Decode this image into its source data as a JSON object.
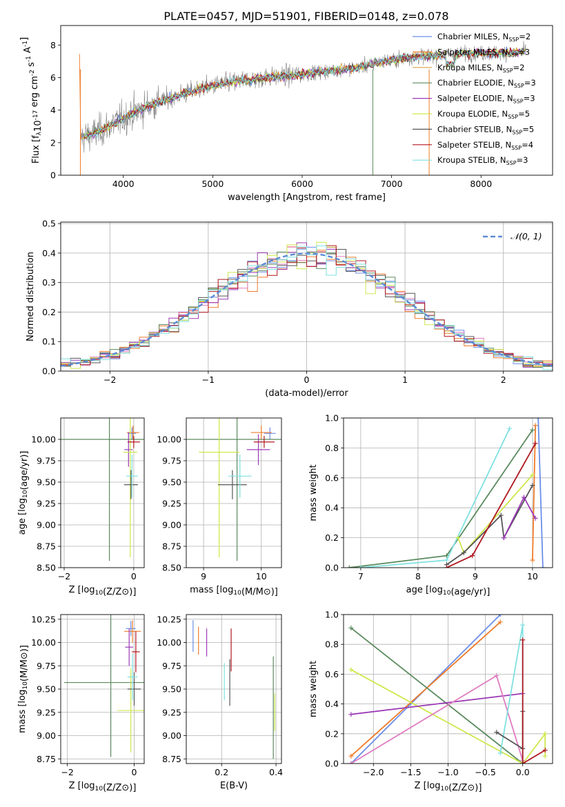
{
  "title": "PLATE=0457, MJD=51901, FIBERID=0148, z=0.078",
  "palette": [
    "#6b8ee8",
    "#ef7b2a",
    "#d9a24a",
    "#5a8a5e",
    "#9b3ab6",
    "#cde84a",
    "#555555",
    "#b0171f",
    "#7fe0e0"
  ],
  "gray": "#808080",
  "chart_data": [
    {
      "id": "spectrum",
      "type": "line",
      "xlabel": "wavelength [Angstrom, rest frame]",
      "ylabel": "Flux [f_λ10^-17 erg cm^-2 s^-1 A^-1]",
      "xlim": [
        3300,
        8800
      ],
      "ylim": [
        0,
        9.2
      ],
      "xticks": [
        4000,
        5000,
        6000,
        7000,
        8000
      ],
      "yticks": [
        0,
        2,
        4,
        6,
        8
      ],
      "grid": false,
      "legend_position": "right",
      "legend": [
        "Chabrier MILES, N_SSP=2",
        "Salpeter MILES, N_SSP=3",
        "Kroupa MILES, N_SSP=2",
        "Chabrier ELODIE, N_SSP=3",
        "Salpeter ELODIE, N_SSP=3",
        "Kroupa ELODIE, N_SSP=5",
        "Chabrier STELIB, N_SSP=5",
        "Salpeter STELIB, N_SSP=4",
        "Kroupa STELIB, N_SSP=3"
      ],
      "continuum": [
        [
          3520,
          2.3
        ],
        [
          3700,
          2.6
        ],
        [
          3900,
          3.2
        ],
        [
          4100,
          3.8
        ],
        [
          4300,
          4.3
        ],
        [
          4500,
          4.7
        ],
        [
          4800,
          5.2
        ],
        [
          5000,
          5.5
        ],
        [
          5300,
          5.8
        ],
        [
          5600,
          6.0
        ],
        [
          6000,
          6.2
        ],
        [
          6300,
          6.4
        ],
        [
          6600,
          6.6
        ],
        [
          7000,
          7.1
        ],
        [
          7300,
          7.3
        ],
        [
          7600,
          7.4
        ],
        [
          7900,
          7.5
        ],
        [
          8200,
          7.5
        ],
        [
          8500,
          7.6
        ]
      ]
    },
    {
      "id": "residuals",
      "type": "histogram",
      "xlabel": "(data-model)/error",
      "ylabel": "Normed distribution",
      "xlim": [
        -2.5,
        2.5
      ],
      "ylim": [
        0,
        0.505
      ],
      "xticks": [
        -2,
        -1,
        0,
        1,
        2
      ],
      "yticks": [
        0.0,
        0.1,
        0.2,
        0.3,
        0.4,
        0.5
      ],
      "grid": true,
      "legend": "N(0,1)",
      "legend_position": "top-right"
    },
    {
      "id": "age-vs-Z",
      "type": "errorbar",
      "xlabel": "Z [log10(Z/Z⊙)]",
      "ylabel": "age  [log10(age/yr)]",
      "xlim": [
        -2.1,
        0.3
      ],
      "ylim": [
        8.5,
        10.25
      ],
      "xticks": [
        -2,
        0
      ],
      "yticks": [
        8.5,
        8.75,
        9.0,
        9.25,
        9.5,
        9.75,
        10.0
      ],
      "grid": true,
      "points": [
        {
          "c": 0,
          "x": -0.05,
          "y": 10.07,
          "xe": 0.12,
          "ye": 0.07
        },
        {
          "c": 1,
          "x": -0.02,
          "y": 10.08,
          "xe": 0.18,
          "ye": 0.08
        },
        {
          "c": 2,
          "x": 0.0,
          "y": 10.0,
          "xe": 0.0,
          "ye": 0.0
        },
        {
          "c": 3,
          "x": -0.7,
          "y": 10.0,
          "xe": 1.4,
          "ye": 1.42
        },
        {
          "c": 4,
          "x": -0.15,
          "y": 9.88,
          "xe": 0.12,
          "ye": 0.2
        },
        {
          "c": 5,
          "x": -0.1,
          "y": 9.85,
          "xe": 0.2,
          "ye": 1.23
        },
        {
          "c": 6,
          "x": -0.08,
          "y": 9.47,
          "xe": 0.2,
          "ye": 0.17
        },
        {
          "c": 7,
          "x": 0.0,
          "y": 9.97,
          "xe": 0.18,
          "ye": 0.07
        },
        {
          "c": 8,
          "x": -0.05,
          "y": 9.57,
          "xe": 0.17,
          "ye": 0.25
        }
      ]
    },
    {
      "id": "age-vs-mass",
      "type": "errorbar",
      "xlabel": "mass [log10(M/M⊙)]",
      "ylabel": "",
      "xlim": [
        8.7,
        10.35
      ],
      "ylim": [
        8.5,
        10.25
      ],
      "xticks": [
        9,
        10
      ],
      "yticks": [
        8.5,
        8.75,
        9.0,
        9.25,
        9.5,
        9.75,
        10.0
      ],
      "grid": true,
      "points": [
        {
          "c": 0,
          "x": 10.15,
          "y": 10.07,
          "xe": 0.1,
          "ye": 0.07
        },
        {
          "c": 1,
          "x": 10.0,
          "y": 10.08,
          "xe": 0.18,
          "ye": 0.08
        },
        {
          "c": 3,
          "x": 9.58,
          "y": 10.0,
          "xe": 1.4,
          "ye": 1.42
        },
        {
          "c": 4,
          "x": 9.95,
          "y": 9.88,
          "xe": 0.2,
          "ye": 0.18
        },
        {
          "c": 5,
          "x": 9.27,
          "y": 9.85,
          "xe": 0.35,
          "ye": 1.23
        },
        {
          "c": 6,
          "x": 9.5,
          "y": 9.47,
          "xe": 0.25,
          "ye": 0.17
        },
        {
          "c": 7,
          "x": 10.05,
          "y": 9.97,
          "xe": 0.18,
          "ye": 0.07
        },
        {
          "c": 8,
          "x": 9.63,
          "y": 9.57,
          "xe": 0.2,
          "ye": 0.25
        }
      ]
    },
    {
      "id": "massweight-vs-age",
      "type": "line",
      "xlabel": "age  [log10(age/yr)]",
      "ylabel": "mass weight",
      "xlim": [
        6.7,
        10.35
      ],
      "ylim": [
        0,
        1.0
      ],
      "xticks": [
        7,
        8,
        9,
        10
      ],
      "yticks": [
        0.0,
        0.2,
        0.4,
        0.6,
        0.8,
        1.0
      ],
      "grid": true,
      "series": [
        {
          "c": 0,
          "pts": [
            [
              10.1,
              1.0
            ],
            [
              10.18,
              0.0
            ]
          ]
        },
        {
          "c": 1,
          "pts": [
            [
              10.0,
              0.05
            ],
            [
              10.05,
              0.95
            ]
          ]
        },
        {
          "c": 3,
          "pts": [
            [
              6.8,
              0.0
            ],
            [
              8.5,
              0.08
            ],
            [
              10.0,
              0.92
            ]
          ]
        },
        {
          "c": 8,
          "pts": [
            [
              7.0,
              0.0
            ],
            [
              8.5,
              0.05
            ],
            [
              9.6,
              0.93
            ]
          ]
        },
        {
          "c": 5,
          "pts": [
            [
              8.7,
              0.2
            ],
            [
              8.8,
              0.1
            ],
            [
              10.0,
              0.62
            ]
          ]
        },
        {
          "c": 6,
          "pts": [
            [
              8.5,
              0.02
            ],
            [
              8.8,
              0.1
            ],
            [
              9.45,
              0.35
            ],
            [
              9.5,
              0.2
            ],
            [
              10.0,
              0.55
            ]
          ]
        },
        {
          "c": 7,
          "pts": [
            [
              8.5,
              0.0
            ],
            [
              8.95,
              0.08
            ],
            [
              10.05,
              0.83
            ]
          ]
        },
        {
          "c": 4,
          "pts": [
            [
              9.5,
              0.2
            ],
            [
              9.85,
              0.47
            ],
            [
              10.05,
              0.33
            ]
          ]
        }
      ]
    },
    {
      "id": "mass-vs-Z",
      "type": "errorbar",
      "xlabel": "Z [log10(Z/Z⊙)]",
      "ylabel": "mass [log10(M/M⊙)]",
      "xlim": [
        -2.2,
        0.3
      ],
      "ylim": [
        8.7,
        10.3
      ],
      "xticks": [
        -2,
        0
      ],
      "yticks": [
        8.75,
        9.0,
        9.25,
        9.5,
        9.75,
        10.0,
        10.25
      ],
      "grid": true,
      "points": [
        {
          "c": 0,
          "x": -0.1,
          "y": 10.15,
          "xe": 0.15,
          "ye": 0.08
        },
        {
          "c": 1,
          "x": -0.05,
          "y": 10.12,
          "xe": 0.25,
          "ye": 0.12
        },
        {
          "c": 3,
          "x": -0.7,
          "y": 9.57,
          "xe": 1.4,
          "ye": 0.8
        },
        {
          "c": 4,
          "x": -0.15,
          "y": 9.95,
          "xe": 0.12,
          "ye": 0.2
        },
        {
          "c": 5,
          "x": -0.1,
          "y": 9.27,
          "xe": 0.4,
          "ye": 0.45
        },
        {
          "c": 6,
          "x": 0.0,
          "y": 9.5,
          "xe": 0.2,
          "ye": 0.18
        },
        {
          "c": 7,
          "x": 0.05,
          "y": 9.9,
          "xe": 0.12,
          "ye": 0.22
        },
        {
          "c": 8,
          "x": -0.05,
          "y": 9.63,
          "xe": 0.15,
          "ye": 0.25
        }
      ]
    },
    {
      "id": "mass-vs-EBV",
      "type": "errorbar",
      "xlabel": "E(B-V)",
      "ylabel": "",
      "xlim": [
        0.07,
        0.42
      ],
      "ylim": [
        8.7,
        10.3
      ],
      "xticks": [
        0.2,
        0.4
      ],
      "yticks": [
        8.75,
        9.0,
        9.25,
        9.5,
        9.75,
        10.0,
        10.25
      ],
      "grid": true,
      "points": [
        {
          "c": 0,
          "x": 0.095,
          "y": 10.07,
          "xe": 0,
          "ye": 0.17
        },
        {
          "c": 1,
          "x": 0.115,
          "y": 10.02,
          "xe": 0,
          "ye": 0.15
        },
        {
          "c": 4,
          "x": 0.145,
          "y": 10.0,
          "xe": 0,
          "ye": 0.15
        },
        {
          "c": 7,
          "x": 0.235,
          "y": 9.92,
          "xe": 0,
          "ye": 0.23
        },
        {
          "c": 8,
          "x": 0.21,
          "y": 9.58,
          "xe": 0,
          "ye": 0.2
        },
        {
          "c": 6,
          "x": 0.23,
          "y": 9.57,
          "xe": 0,
          "ye": 0.25
        },
        {
          "c": 3,
          "x": 0.39,
          "y": 9.3,
          "xe": 0,
          "ye": 0.55
        },
        {
          "c": 5,
          "x": 0.395,
          "y": 9.25,
          "xe": 0,
          "ye": 0.2
        }
      ]
    },
    {
      "id": "massweight-vs-Z",
      "type": "line",
      "xlabel": "Z [log10(Z/Z⊙)]",
      "ylabel": "mass weight",
      "xlim": [
        -2.4,
        0.4
      ],
      "ylim": [
        0,
        1.0
      ],
      "xticks": [
        -2.0,
        -1.5,
        -1.0,
        -0.5,
        0.0
      ],
      "yticks": [
        0.0,
        0.2,
        0.4,
        0.6,
        0.8,
        1.0
      ],
      "grid": true,
      "series": [
        {
          "c": 0,
          "pts": [
            [
              -2.3,
              0.0
            ],
            [
              -0.3,
              1.0
            ]
          ]
        },
        {
          "c": 1,
          "pts": [
            [
              -2.3,
              0.05
            ],
            [
              -0.3,
              0.95
            ]
          ]
        },
        {
          "c": 3,
          "pts": [
            [
              -2.3,
              0.91
            ],
            [
              0.0,
              0.0
            ]
          ]
        },
        {
          "c": 5,
          "pts": [
            [
              -2.3,
              0.63
            ],
            [
              0.0,
              0.0
            ],
            [
              0.3,
              0.2
            ],
            [
              0.3,
              0.05
            ]
          ]
        },
        {
          "c": 4,
          "pts": [
            [
              -2.3,
              0.33
            ],
            [
              0.0,
              0.47
            ]
          ]
        },
        {
          "c": 9,
          "pts": [
            [
              -2.3,
              0.0
            ],
            [
              -0.35,
              0.59
            ],
            [
              0.0,
              0.02
            ]
          ]
        },
        {
          "c": 8,
          "pts": [
            [
              -0.3,
              0.07
            ],
            [
              0.0,
              0.93
            ],
            [
              0.0,
              0.0
            ]
          ]
        },
        {
          "c": 6,
          "pts": [
            [
              -0.35,
              0.21
            ],
            [
              0.0,
              0.1
            ],
            [
              0.0,
              0.35
            ]
          ]
        },
        {
          "c": 7,
          "pts": [
            [
              0.0,
              0.83
            ],
            [
              0.0,
              0.0
            ],
            [
              0.3,
              0.09
            ]
          ]
        }
      ]
    }
  ]
}
